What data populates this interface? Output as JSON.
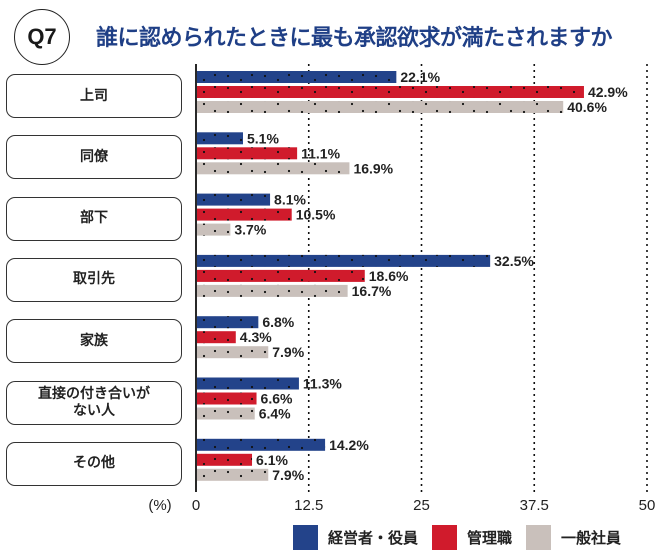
{
  "header": {
    "badge": "Q7",
    "title": "誰に認められたときに最も承認欲求が満たされますか"
  },
  "chart_data": {
    "type": "bar",
    "orientation": "horizontal",
    "categories": [
      "上司",
      "同僚",
      "部下",
      "取引先",
      "家族",
      "直接の付き合いがない人",
      "その他"
    ],
    "category_display": [
      "上司",
      "同僚",
      "部下",
      "取引先",
      "家族",
      "直接の付き合いが\nない人",
      "その他"
    ],
    "series": [
      {
        "name": "経営者・役員",
        "color": "#23438a",
        "values": [
          22.1,
          5.1,
          8.1,
          32.5,
          6.8,
          11.3,
          14.2
        ]
      },
      {
        "name": "管理職",
        "color": "#d01b2c",
        "values": [
          42.9,
          11.1,
          10.5,
          18.6,
          4.3,
          6.6,
          6.1
        ]
      },
      {
        "name": "一般社員",
        "color": "#c9c0bb",
        "values": [
          40.6,
          16.9,
          3.7,
          16.7,
          7.9,
          6.4,
          7.9
        ]
      }
    ],
    "xlim": [
      0,
      50
    ],
    "xticks": [
      "0",
      "12.5",
      "25",
      "37.5",
      "50"
    ],
    "xlabel": "(%)",
    "value_suffix": "%",
    "grid": "vertical dotted",
    "legend": "bottom-right"
  }
}
